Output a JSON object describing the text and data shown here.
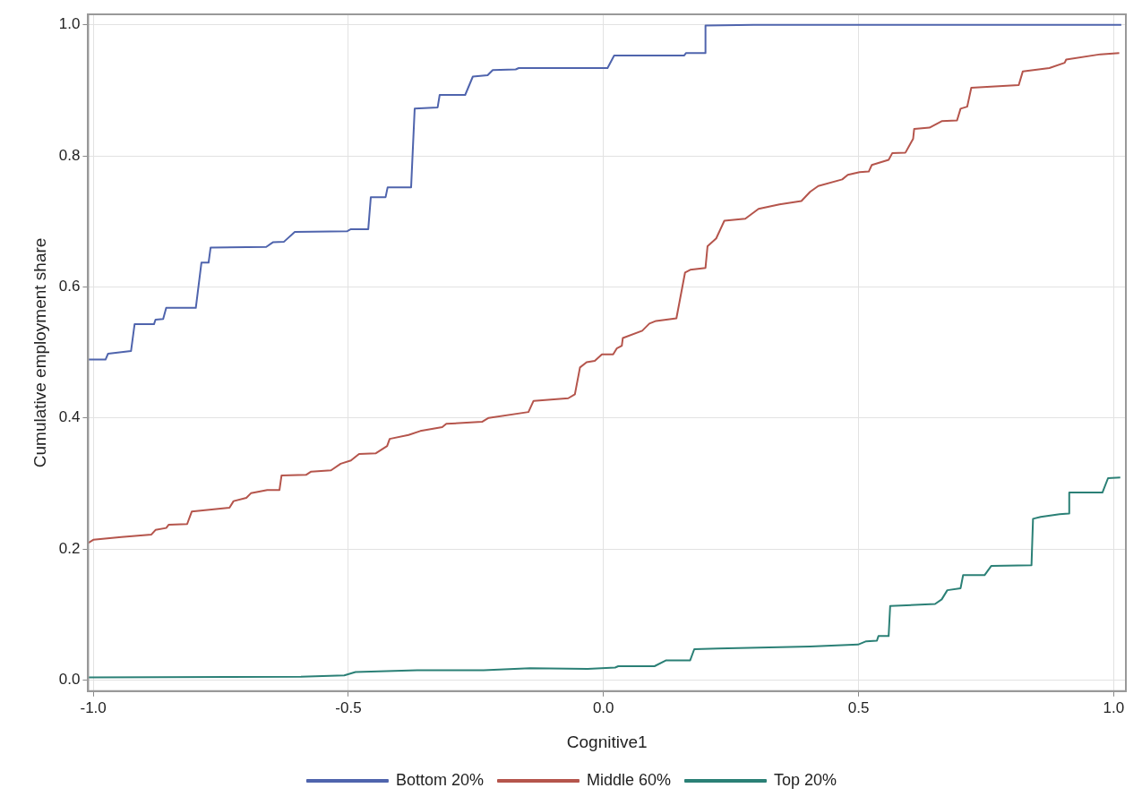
{
  "chart_data": {
    "type": "line",
    "xlabel": "Cognitive1",
    "ylabel": "Cumulative employment share",
    "xlim": [
      -1.01,
      1.024
    ],
    "ylim": [
      -0.017,
      1.016
    ],
    "xticks": [
      {
        "value": -1,
        "label": "-1.0"
      },
      {
        "value": -0.5,
        "label": "-0.5"
      },
      {
        "value": 0,
        "label": "0.0"
      },
      {
        "value": 0.5,
        "label": "0.5"
      },
      {
        "value": 1,
        "label": "1.0"
      }
    ],
    "yticks": [
      {
        "value": 0,
        "label": "0.0"
      },
      {
        "value": 0.2,
        "label": "0.2"
      },
      {
        "value": 0.4,
        "label": "0.4"
      },
      {
        "value": 0.6,
        "label": "0.6"
      },
      {
        "value": 0.8,
        "label": "0.8"
      },
      {
        "value": 1,
        "label": "1.0"
      }
    ],
    "grid": true,
    "legend": "bottom",
    "marker": "none",
    "line_style": "solid",
    "series": [
      {
        "name": "Bottom 20%",
        "color": "#4f64ad",
        "x": [
          -1.01,
          -0.976,
          -0.971,
          -0.926,
          -0.919,
          -0.881,
          -0.878,
          -0.863,
          -0.857,
          -0.799,
          -0.788,
          -0.774,
          -0.77,
          -0.661,
          -0.648,
          -0.626,
          -0.605,
          -0.502,
          -0.495,
          -0.461,
          -0.456,
          -0.427,
          -0.423,
          -0.377,
          -0.37,
          -0.325,
          -0.321,
          -0.271,
          -0.256,
          -0.227,
          -0.217,
          -0.172,
          -0.166,
          0.008,
          0.021,
          0.158,
          0.162,
          0.2,
          0.2,
          0.294,
          1.015
        ],
        "values": [
          0.489,
          0.489,
          0.498,
          0.502,
          0.543,
          0.543,
          0.55,
          0.551,
          0.568,
          0.568,
          0.637,
          0.637,
          0.66,
          0.661,
          0.668,
          0.669,
          0.684,
          0.685,
          0.688,
          0.688,
          0.737,
          0.737,
          0.752,
          0.752,
          0.872,
          0.874,
          0.893,
          0.893,
          0.921,
          0.923,
          0.931,
          0.932,
          0.934,
          0.934,
          0.953,
          0.953,
          0.957,
          0.957,
          0.999,
          1.0,
          1.0
        ]
      },
      {
        "name": "Middle 60%",
        "color": "#b5554c",
        "x": [
          -1.01,
          -1.0,
          -0.945,
          -0.886,
          -0.878,
          -0.857,
          -0.852,
          -0.816,
          -0.807,
          -0.733,
          -0.725,
          -0.7,
          -0.691,
          -0.659,
          -0.635,
          -0.631,
          -0.583,
          -0.573,
          -0.534,
          -0.515,
          -0.495,
          -0.479,
          -0.446,
          -0.424,
          -0.419,
          -0.382,
          -0.359,
          -0.316,
          -0.308,
          -0.238,
          -0.225,
          -0.147,
          -0.137,
          -0.069,
          -0.056,
          -0.046,
          -0.033,
          -0.017,
          -0.003,
          0.019,
          0.026,
          0.036,
          0.038,
          0.076,
          0.09,
          0.103,
          0.143,
          0.16,
          0.17,
          0.2,
          0.204,
          0.221,
          0.237,
          0.278,
          0.304,
          0.345,
          0.388,
          0.405,
          0.421,
          0.468,
          0.479,
          0.502,
          0.52,
          0.526,
          0.559,
          0.566,
          0.592,
          0.607,
          0.609,
          0.639,
          0.663,
          0.693,
          0.7,
          0.713,
          0.721,
          0.814,
          0.822,
          0.874,
          0.904,
          0.907,
          0.974,
          1.011
        ],
        "values": [
          0.209,
          0.214,
          0.218,
          0.222,
          0.229,
          0.232,
          0.237,
          0.238,
          0.257,
          0.263,
          0.273,
          0.278,
          0.285,
          0.29,
          0.29,
          0.312,
          0.313,
          0.318,
          0.32,
          0.33,
          0.335,
          0.345,
          0.346,
          0.357,
          0.368,
          0.374,
          0.38,
          0.386,
          0.391,
          0.394,
          0.4,
          0.409,
          0.426,
          0.43,
          0.436,
          0.477,
          0.485,
          0.487,
          0.497,
          0.497,
          0.506,
          0.51,
          0.522,
          0.533,
          0.544,
          0.548,
          0.552,
          0.622,
          0.626,
          0.629,
          0.662,
          0.674,
          0.701,
          0.704,
          0.719,
          0.726,
          0.731,
          0.745,
          0.754,
          0.764,
          0.771,
          0.775,
          0.776,
          0.786,
          0.794,
          0.804,
          0.805,
          0.826,
          0.841,
          0.843,
          0.853,
          0.854,
          0.872,
          0.875,
          0.904,
          0.908,
          0.929,
          0.934,
          0.942,
          0.947,
          0.955,
          0.957
        ]
      },
      {
        "name": "Top 20%",
        "color": "#2b8076",
        "x": [
          -1.01,
          -0.593,
          -0.508,
          -0.486,
          -0.365,
          -0.235,
          -0.144,
          -0.031,
          0.023,
          0.029,
          0.1,
          0.123,
          0.17,
          0.178,
          0.224,
          0.405,
          0.499,
          0.515,
          0.536,
          0.539,
          0.559,
          0.562,
          0.65,
          0.663,
          0.674,
          0.7,
          0.705,
          0.747,
          0.76,
          0.839,
          0.842,
          0.857,
          0.894,
          0.912,
          0.913,
          0.978,
          0.989,
          1.013
        ],
        "values": [
          0.004,
          0.005,
          0.007,
          0.012,
          0.015,
          0.015,
          0.018,
          0.017,
          0.019,
          0.021,
          0.021,
          0.03,
          0.03,
          0.047,
          0.048,
          0.051,
          0.054,
          0.059,
          0.06,
          0.067,
          0.067,
          0.113,
          0.116,
          0.123,
          0.137,
          0.14,
          0.16,
          0.16,
          0.174,
          0.175,
          0.246,
          0.249,
          0.253,
          0.254,
          0.286,
          0.286,
          0.308,
          0.309
        ]
      }
    ]
  }
}
